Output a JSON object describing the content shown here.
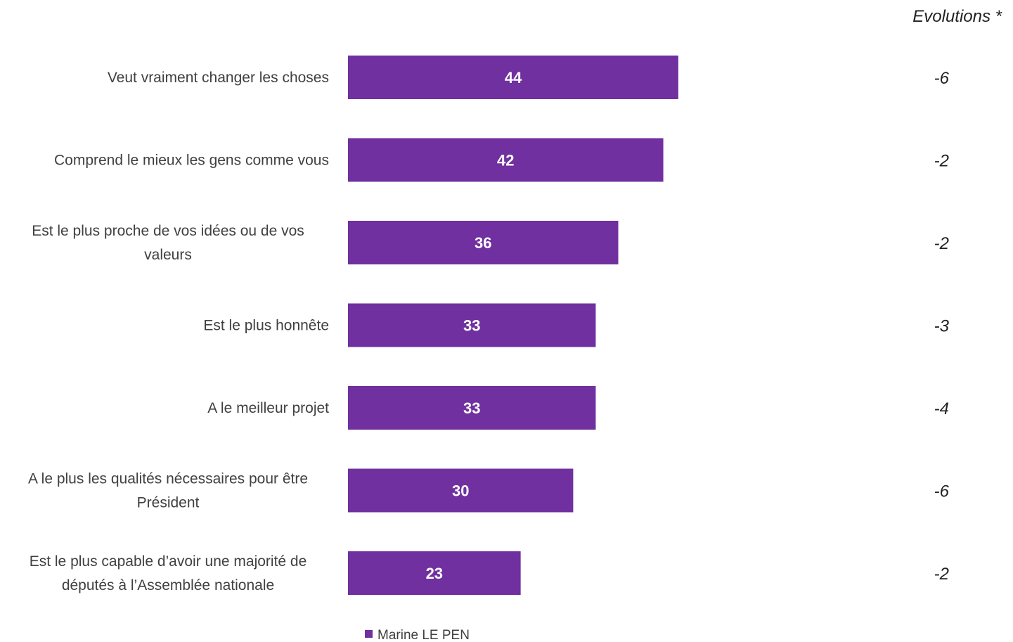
{
  "chart_data": {
    "type": "bar",
    "orientation": "horizontal",
    "categories": [
      [
        "Veut vraiment changer les choses"
      ],
      [
        "Comprend le mieux les gens comme vous"
      ],
      [
        "Est le plus proche de vos idées ou de vos",
        "valeurs"
      ],
      [
        "Est le plus honnête"
      ],
      [
        "A le meilleur projet"
      ],
      [
        "A le plus les qualités nécessaires pour être",
        "Président"
      ],
      [
        "Est le plus capable d’avoir une majorité de",
        "députés à l’Assemblée nationale"
      ]
    ],
    "series": [
      {
        "name": "Marine LE PEN",
        "color": "#7030a0",
        "values": [
          44,
          42,
          36,
          33,
          33,
          30,
          23
        ]
      }
    ],
    "evolutions_header": "Evolutions *",
    "evolutions": [
      "-6",
      "-2",
      "-2",
      "-3",
      "-4",
      "-6",
      "-2"
    ],
    "legend_position": "bottom",
    "grid": false
  }
}
